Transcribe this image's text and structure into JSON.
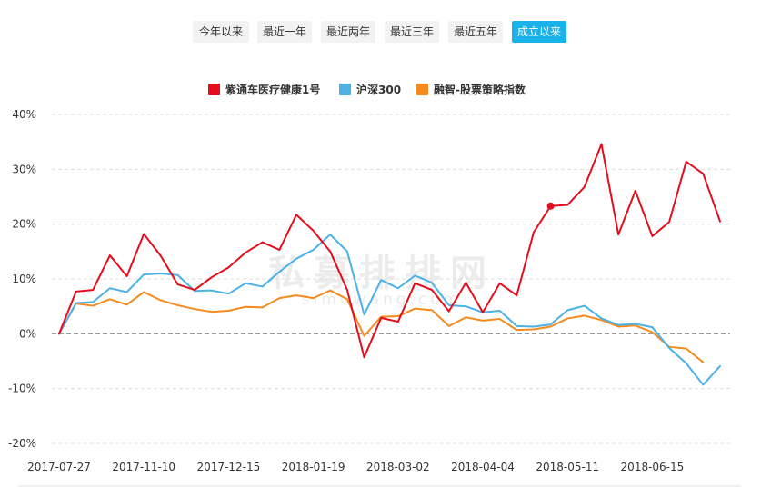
{
  "tabs": [
    {
      "label": "今年以来",
      "active": false
    },
    {
      "label": "最近一年",
      "active": false
    },
    {
      "label": "最近两年",
      "active": false
    },
    {
      "label": "最近三年",
      "active": false
    },
    {
      "label": "最近五年",
      "active": false
    },
    {
      "label": "成立以来",
      "active": true
    }
  ],
  "watermark": {
    "text": "私募排排网",
    "url": "simuwang.com"
  },
  "chart_data": {
    "type": "line",
    "title": "",
    "xlabel": "",
    "ylabel": "",
    "ylim": [
      -20,
      40
    ],
    "yticks": [
      "40%",
      "30%",
      "20%",
      "10%",
      "0%",
      "-10%",
      "-20%"
    ],
    "ytick_values": [
      40,
      30,
      20,
      10,
      0,
      -10,
      -20
    ],
    "xtick_labels": [
      "2017-07-27",
      "2017-11-10",
      "2017-12-15",
      "2018-01-19",
      "2018-03-02",
      "2018-04-04",
      "2018-05-11",
      "2018-06-15"
    ],
    "xtick_positions": [
      0,
      5,
      10,
      15,
      20,
      25,
      30,
      35
    ],
    "grid": "horizontal dashed",
    "legend_position": "top",
    "zero_line": "dashed",
    "series": [
      {
        "name": "紫通车医疗健康1号",
        "color": "#e30d1d",
        "values": [
          0,
          7.7,
          8,
          14.3,
          10.5,
          18.2,
          14.2,
          9,
          8,
          10.3,
          12.1,
          14.8,
          16.7,
          15.3,
          21.7,
          18.8,
          15,
          8,
          -4.3,
          2.9,
          2.2,
          9.2,
          8,
          4.1,
          9.3,
          3.9,
          9.2,
          7,
          18.5,
          23.3,
          23.5,
          26.8,
          34.6,
          18.1,
          26.1,
          17.8,
          20.4,
          31.4,
          29.2,
          20.5
        ],
        "highlight_index": 29
      },
      {
        "name": "沪深300",
        "color": "#4db1e6",
        "values": [
          0,
          5.6,
          5.8,
          8.3,
          7.6,
          10.8,
          11,
          10.7,
          7.8,
          7.9,
          7.3,
          9.2,
          8.6,
          11.3,
          13.7,
          15.3,
          18.1,
          15,
          3.5,
          9.8,
          8.3,
          10.6,
          9.3,
          5.2,
          5,
          3.9,
          4.2,
          1.4,
          1.3,
          1.7,
          4.3,
          5.1,
          2.8,
          1.6,
          1.8,
          1.2,
          -2.6,
          -5.4,
          -9.3,
          -5.9
        ]
      },
      {
        "name": "融智-股票策略指数",
        "color": "#f58b1f",
        "values": [
          0,
          5.5,
          5.1,
          6.3,
          5.3,
          7.6,
          6.1,
          5.2,
          4.5,
          4,
          4.2,
          4.9,
          4.8,
          6.5,
          7,
          6.5,
          7.9,
          6.3,
          -0.4,
          3.1,
          3.2,
          4.6,
          4.3,
          1.4,
          3,
          2.4,
          2.7,
          0.7,
          0.8,
          1.3,
          2.8,
          3.3,
          2.5,
          1.3,
          1.5,
          0.3,
          -2.4,
          -2.7,
          -5.2,
          null
        ]
      }
    ]
  }
}
